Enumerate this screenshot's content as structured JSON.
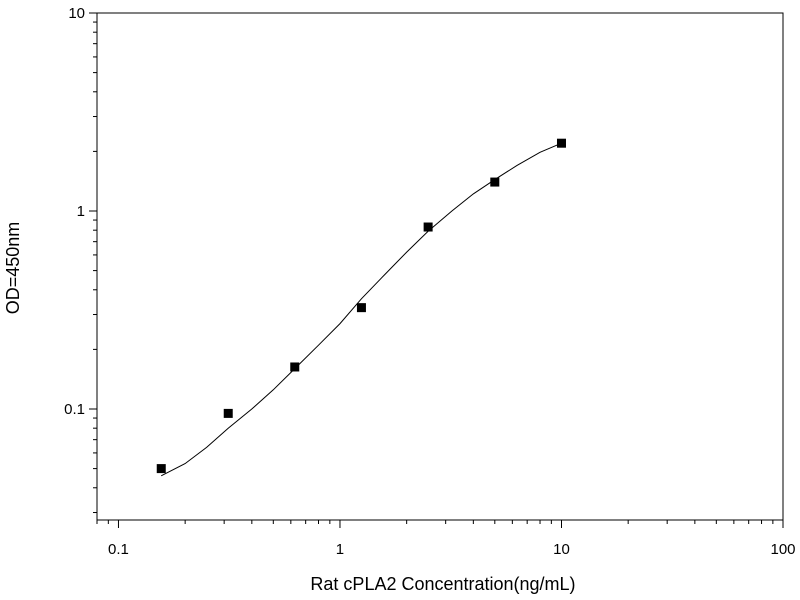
{
  "chart_data": {
    "type": "scatter",
    "title": "",
    "xlabel": "Rat cPLA2 Concentration(ng/mL)",
    "ylabel": "OD=450nm",
    "x_scale": "log",
    "y_scale": "log",
    "xlim": [
      0.08,
      100
    ],
    "ylim": [
      0.0275,
      10
    ],
    "x_ticks": [
      {
        "value": 0.1,
        "label": "0.1"
      },
      {
        "value": 1,
        "label": "1"
      },
      {
        "value": 10,
        "label": "10"
      },
      {
        "value": 100,
        "label": "100"
      }
    ],
    "y_ticks": [
      {
        "value": 0.1,
        "label": "0.1"
      },
      {
        "value": 1,
        "label": "1"
      },
      {
        "value": 10,
        "label": "10"
      }
    ],
    "grid": false,
    "legend": "none",
    "series": [
      {
        "marker": "square",
        "color": "#000000",
        "points": [
          {
            "x": 0.156,
            "y": 0.05
          },
          {
            "x": 0.313,
            "y": 0.095
          },
          {
            "x": 0.625,
            "y": 0.163
          },
          {
            "x": 1.25,
            "y": 0.325
          },
          {
            "x": 2.5,
            "y": 0.83
          },
          {
            "x": 5,
            "y": 1.4
          },
          {
            "x": 10,
            "y": 2.2
          }
        ]
      }
    ],
    "fit_curve": {
      "color": "#000000",
      "points": [
        {
          "x": 0.156,
          "y": 0.046
        },
        {
          "x": 0.2,
          "y": 0.053
        },
        {
          "x": 0.25,
          "y": 0.064
        },
        {
          "x": 0.313,
          "y": 0.08
        },
        {
          "x": 0.4,
          "y": 0.1
        },
        {
          "x": 0.5,
          "y": 0.125
        },
        {
          "x": 0.625,
          "y": 0.16
        },
        {
          "x": 0.8,
          "y": 0.21
        },
        {
          "x": 1.0,
          "y": 0.27
        },
        {
          "x": 1.25,
          "y": 0.36
        },
        {
          "x": 1.6,
          "y": 0.48
        },
        {
          "x": 2.0,
          "y": 0.62
        },
        {
          "x": 2.5,
          "y": 0.79
        },
        {
          "x": 3.2,
          "y": 1.0
        },
        {
          "x": 4.0,
          "y": 1.22
        },
        {
          "x": 5.0,
          "y": 1.44
        },
        {
          "x": 6.3,
          "y": 1.7
        },
        {
          "x": 8.0,
          "y": 1.98
        },
        {
          "x": 10.0,
          "y": 2.2
        }
      ]
    }
  }
}
